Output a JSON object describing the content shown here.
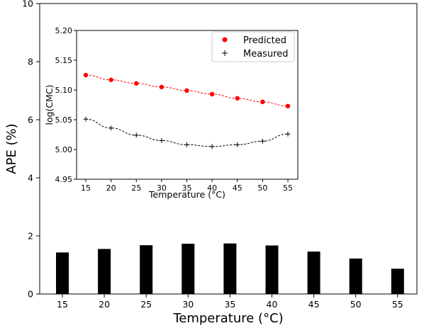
{
  "chart_data": [
    {
      "type": "bar",
      "xlabel": "Temperature (°C)",
      "ylabel": "APE (%)",
      "categories": [
        "15",
        "20",
        "25",
        "30",
        "35",
        "40",
        "45",
        "50",
        "55"
      ],
      "values": [
        1.43,
        1.55,
        1.68,
        1.73,
        1.74,
        1.67,
        1.46,
        1.22,
        0.87
      ],
      "ylim": [
        0,
        10
      ],
      "yticks": [
        "0",
        "2",
        "4",
        "6",
        "8",
        "10"
      ],
      "bar_color": "#000000"
    },
    {
      "type": "line",
      "xlabel": "Temperature (°C)",
      "ylabel": "log(CMC)",
      "x": [
        15,
        20,
        25,
        30,
        35,
        40,
        45,
        50,
        55
      ],
      "xticks": [
        "15",
        "20",
        "25",
        "30",
        "35",
        "40",
        "45",
        "50",
        "55"
      ],
      "ylim": [
        4.95,
        5.2
      ],
      "yticks": [
        "4.95",
        "5.00",
        "5.05",
        "5.10",
        "5.15",
        "5.20"
      ],
      "legend": "top-right",
      "series": [
        {
          "name": "Predicted",
          "color": "#ff0000",
          "marker": "circle",
          "line": "dashed",
          "values": [
            5.125,
            5.117,
            5.111,
            5.105,
            5.099,
            5.093,
            5.086,
            5.08,
            5.073
          ]
        },
        {
          "name": "Measured",
          "color": "#000000",
          "marker": "plus",
          "line": "dashed",
          "values": [
            5.051,
            5.036,
            5.024,
            5.015,
            5.008,
            5.005,
            5.008,
            5.014,
            5.026
          ]
        }
      ]
    }
  ]
}
